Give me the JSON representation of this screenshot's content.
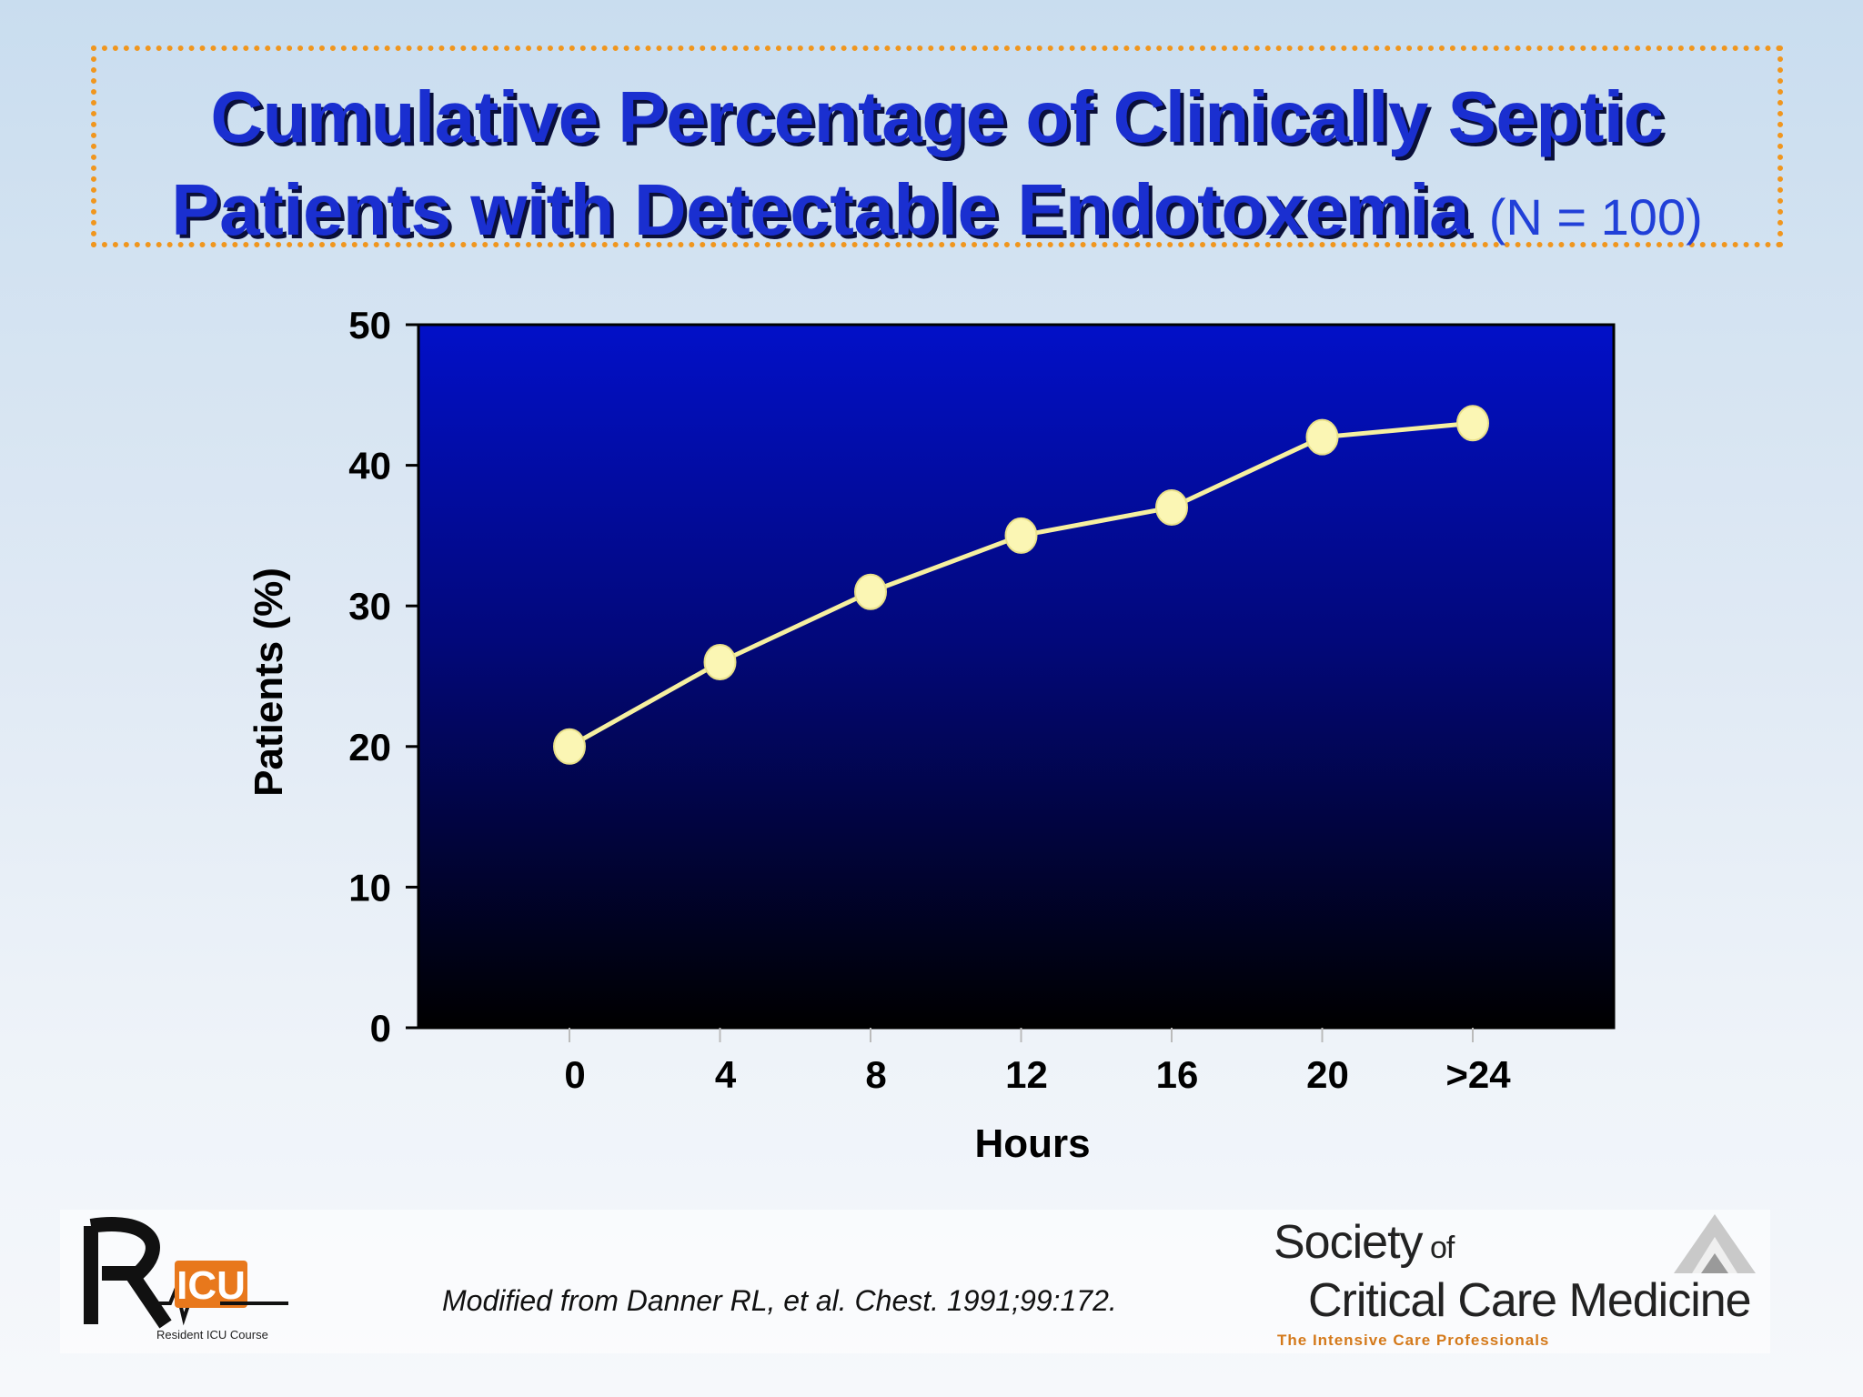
{
  "slide": {
    "title_line1": "Cumulative Percentage of Clinically Septic",
    "title_line2": "Patients with Detectable Endotoxemia",
    "title_note": "(N = 100)",
    "citation": "Modified from Danner RL, et al. Chest. 1991;99:172.",
    "logo_left": {
      "text": "Resident ICU Course"
    },
    "logo_right": {
      "line1": "Society",
      "line1_small": "of",
      "line2": "Critical Care Medicine",
      "tagline": "The Intensive Care Professionals"
    }
  },
  "chart_data": {
    "type": "line",
    "categories": [
      "0",
      "4",
      "8",
      "12",
      "16",
      "20",
      ">24"
    ],
    "series": [
      {
        "values": [
          20,
          26,
          31,
          35,
          37,
          42,
          43
        ]
      }
    ],
    "xlabel": "Hours",
    "ylabel": "Patients (%)",
    "ylim": [
      0,
      50
    ],
    "yticks": [
      0,
      10,
      20,
      30,
      40,
      50
    ],
    "grid": false,
    "legend": "none",
    "colors": {
      "line": "#f6f0a0",
      "marker": "#fbf6b4",
      "plot_top": "#0210c8",
      "plot_bottom": "#000000"
    }
  }
}
